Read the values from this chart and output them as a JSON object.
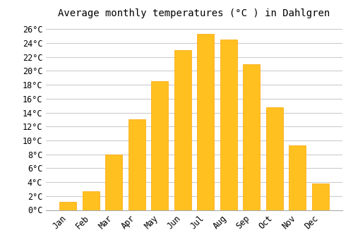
{
  "title": "Average monthly temperatures (°C ) in Dahlgren",
  "months": [
    "Jan",
    "Feb",
    "Mar",
    "Apr",
    "May",
    "Jun",
    "Jul",
    "Aug",
    "Sep",
    "Oct",
    "Nov",
    "Dec"
  ],
  "values": [
    1.2,
    2.7,
    8.0,
    13.0,
    18.5,
    23.0,
    25.3,
    24.5,
    21.0,
    14.8,
    9.3,
    3.8
  ],
  "bar_color": "#FFC020",
  "bar_edge_color": "#FFA500",
  "background_color": "#ffffff",
  "grid_color": "#cccccc",
  "ylim": [
    0,
    27
  ],
  "yticks": [
    0,
    2,
    4,
    6,
    8,
    10,
    12,
    14,
    16,
    18,
    20,
    22,
    24,
    26
  ],
  "title_fontsize": 10,
  "tick_fontsize": 8.5,
  "font_family": "monospace"
}
